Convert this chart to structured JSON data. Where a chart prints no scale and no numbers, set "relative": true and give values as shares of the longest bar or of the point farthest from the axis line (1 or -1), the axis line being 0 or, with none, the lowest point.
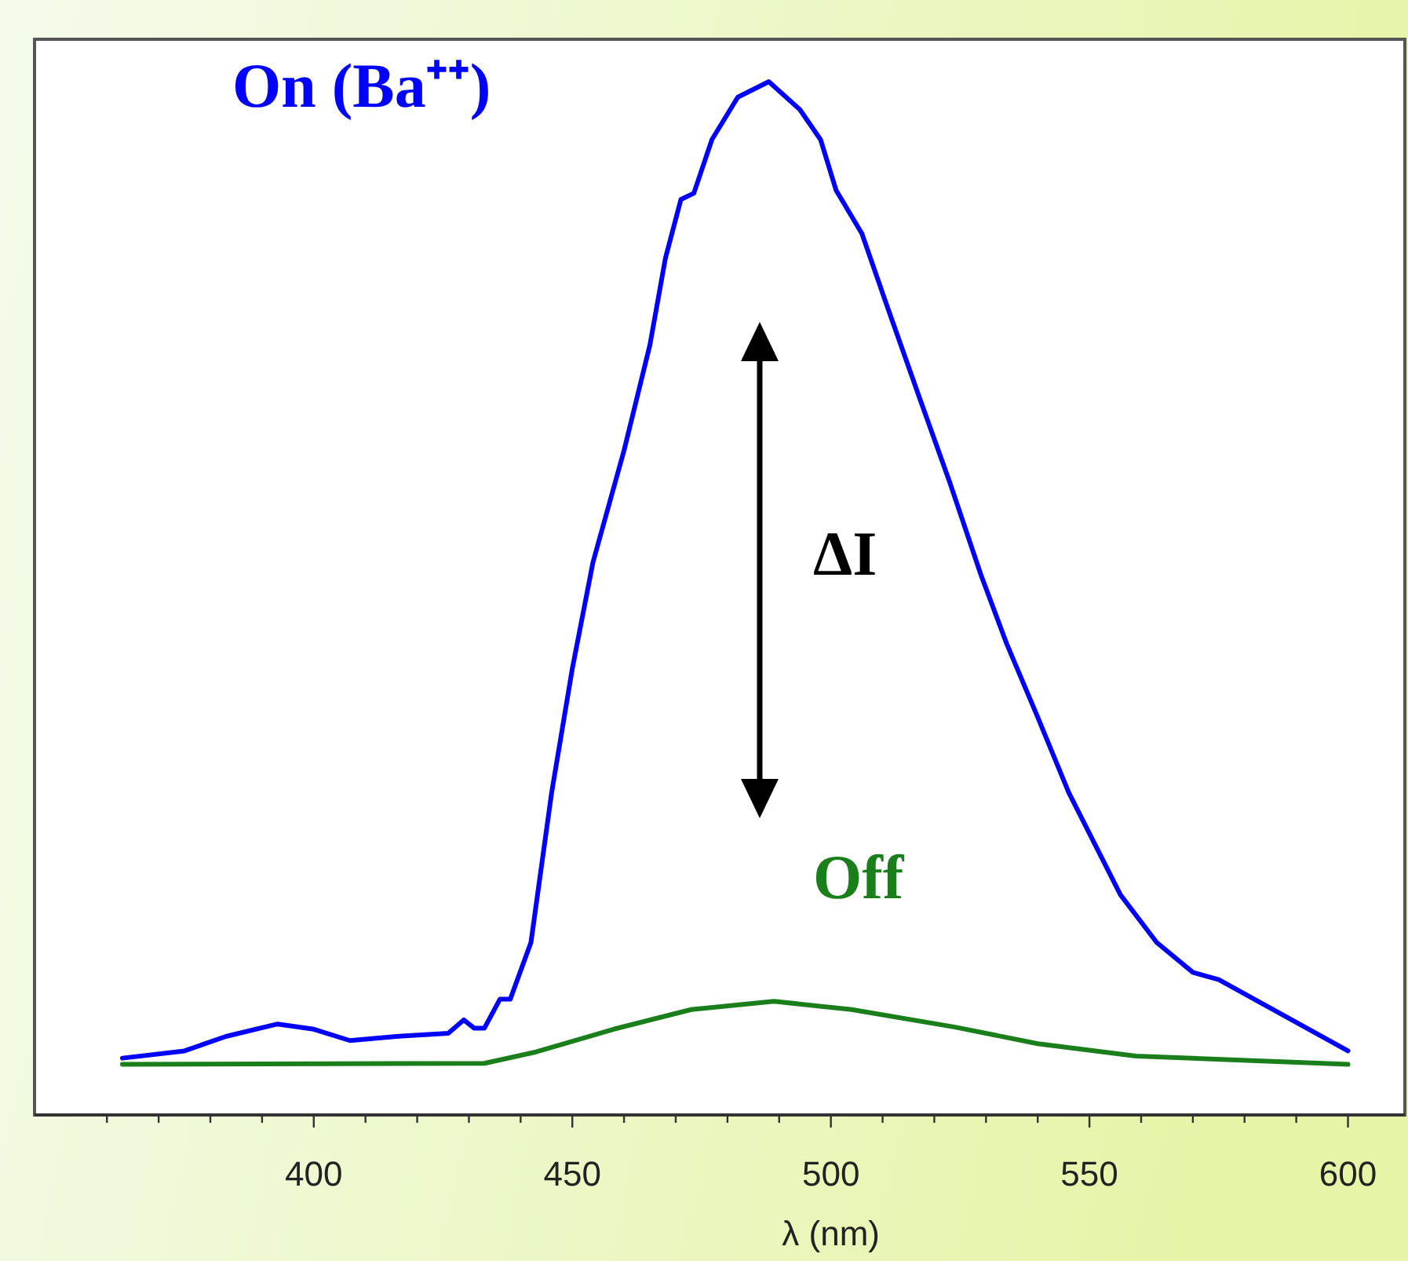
{
  "chart_data": {
    "type": "line",
    "relative": true,
    "xlabel": "λ (nm)",
    "xlim": [
      346,
      611
    ],
    "xticks": [
      {
        "value": 360,
        "label": null
      },
      {
        "value": 370,
        "label": null
      },
      {
        "value": 380,
        "label": null
      },
      {
        "value": 390,
        "label": null
      },
      400,
      {
        "value": 410,
        "label": null
      },
      {
        "value": 420,
        "label": null
      },
      {
        "value": 430,
        "label": null
      },
      {
        "value": 440,
        "label": null
      },
      450,
      {
        "value": 460,
        "label": null
      },
      {
        "value": 470,
        "label": null
      },
      {
        "value": 480,
        "label": null
      },
      {
        "value": 490,
        "label": null
      },
      500,
      {
        "value": 510,
        "label": null
      },
      {
        "value": 520,
        "label": null
      },
      {
        "value": 530,
        "label": null
      },
      {
        "value": 540,
        "label": null
      },
      550,
      {
        "value": 560,
        "label": null
      },
      {
        "value": 570,
        "label": null
      },
      {
        "value": 580,
        "label": null
      },
      {
        "value": 590,
        "label": null
      },
      600
    ],
    "grid": false,
    "marker": "none",
    "line_style": "solid",
    "annotations": [
      "ΔI"
    ],
    "series": [
      {
        "name": "On (Ba⁺⁺)",
        "color": "#0000ff",
        "x": [
          363,
          375,
          383,
          393,
          400,
          407,
          416,
          426,
          429,
          431,
          433,
          436,
          438,
          442,
          446,
          450,
          454,
          460,
          465,
          468,
          471,
          473.5,
          477,
          482,
          488,
          494,
          498,
          501,
          506,
          511,
          517,
          523,
          529,
          534,
          540,
          546,
          556,
          563,
          570,
          575,
          600
        ],
        "values": [
          0.055,
          0.062,
          0.076,
          0.088,
          0.083,
          0.072,
          0.076,
          0.079,
          0.092,
          0.084,
          0.084,
          0.112,
          0.112,
          0.167,
          0.312,
          0.432,
          0.535,
          0.643,
          0.745,
          0.829,
          0.886,
          0.892,
          0.944,
          0.985,
          1,
          0.973,
          0.944,
          0.895,
          0.853,
          0.781,
          0.696,
          0.612,
          0.523,
          0.456,
          0.385,
          0.312,
          0.213,
          0.167,
          0.138,
          0.131,
          0.062
        ]
      },
      {
        "name": "Off",
        "color": "#1a7f1a",
        "x": [
          363,
          433,
          443,
          458,
          473,
          489,
          504,
          524,
          540,
          559,
          600
        ],
        "values": [
          0.049,
          0.05,
          0.061,
          0.083,
          0.102,
          0.11,
          0.102,
          0.085,
          0.069,
          0.057,
          0.049
        ]
      }
    ]
  }
}
